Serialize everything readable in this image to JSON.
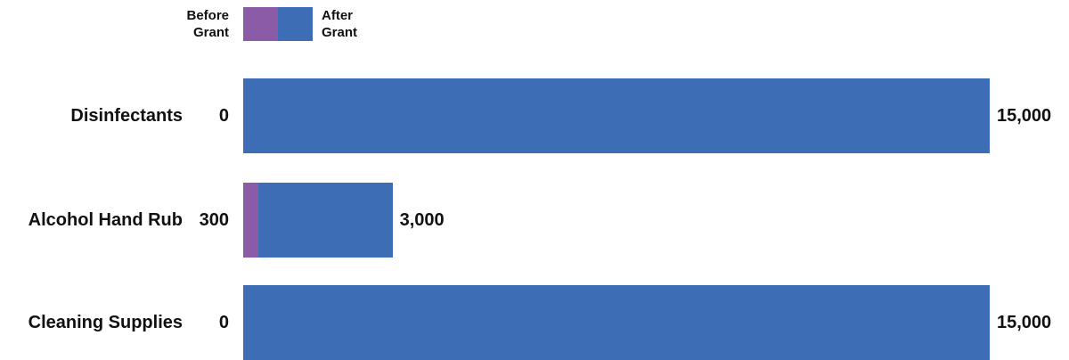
{
  "chart_data": {
    "type": "bar",
    "orientation": "horizontal",
    "categories": [
      "Disinfectants",
      "Alcohol Hand Rub",
      "Cleaning Supplies"
    ],
    "series": [
      {
        "name": "Before Grant",
        "color": "#8b5ba8",
        "values": [
          0,
          300,
          0
        ]
      },
      {
        "name": "After Grant",
        "color": "#3d6db5",
        "values": [
          15000,
          3000,
          15000
        ],
        "value_labels": [
          "15,000",
          "3,000",
          "15,000"
        ]
      }
    ],
    "xlim": [
      0,
      15000
    ]
  }
}
